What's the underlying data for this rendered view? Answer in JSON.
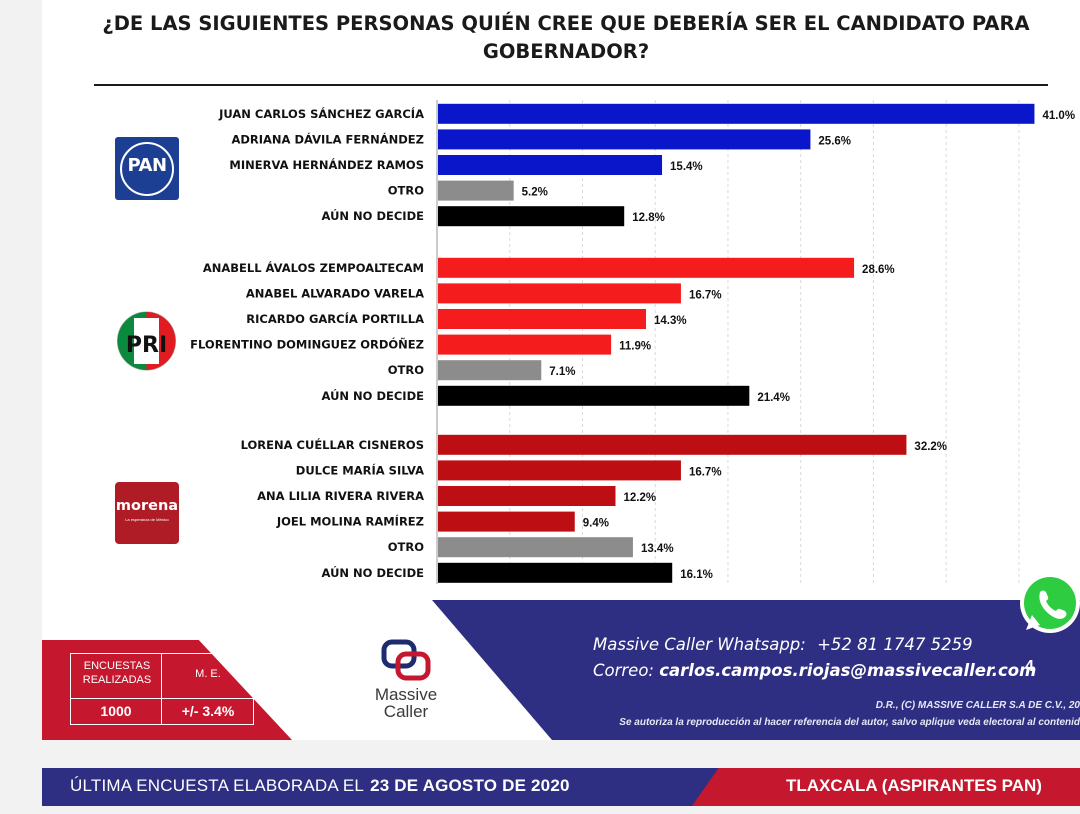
{
  "title": "¿DE LAS SIGUIENTES PERSONAS QUIÉN CREE QUE DEBERÍA SER EL CANDIDATO PARA GOBERNADOR?",
  "parties": {
    "pan": "PAN",
    "pri": "PRI",
    "morena": "morena",
    "morena_tagline": "La esperanza de México"
  },
  "colors": {
    "pan": "#0a16c9",
    "pri": "#f41c1c",
    "morena": "#bd0f13",
    "otro": "#8c8c8c",
    "no_decide": "#000000",
    "navy": "#2e2f82",
    "red": "#c5182e"
  },
  "chart_data": {
    "type": "bar",
    "orientation": "horizontal",
    "title": "¿DE LAS SIGUIENTES PERSONAS QUIÉN CREE QUE DEBERÍA SER EL CANDIDATO PARA GOBERNADOR?",
    "xlim": [
      0,
      42
    ],
    "grid": true,
    "value_suffix": "%",
    "groups": [
      {
        "party": "PAN",
        "categories": [
          "JUAN CARLOS SÁNCHEZ GARCÍA",
          "ADRIANA DÁVILA FERNÁNDEZ",
          "MINERVA HERNÁNDEZ RAMOS",
          "OTRO",
          "AÚN NO DECIDE"
        ],
        "values": [
          41.0,
          25.6,
          15.4,
          5.2,
          12.8
        ],
        "labels": [
          "41.0%",
          "25.6%",
          "15.4%",
          "5.2%",
          "12.8%"
        ]
      },
      {
        "party": "PRI",
        "categories": [
          "ANABELL ÁVALOS ZEMPOALTECAM",
          "ANABEL ALVARADO VARELA",
          "RICARDO GARCÍA PORTILLA",
          "FLORENTINO DOMINGUEZ ORDÓÑEZ",
          "OTRO",
          "AÚN NO DECIDE"
        ],
        "values": [
          28.6,
          16.7,
          14.3,
          11.9,
          7.1,
          21.4
        ],
        "labels": [
          "28.6%",
          "16.7%",
          "14.3%",
          "11.9%",
          "7.1%",
          "21.4%"
        ]
      },
      {
        "party": "morena",
        "categories": [
          "LORENA CUÉLLAR CISNEROS",
          "DULCE MARÍA SILVA",
          "ANA LILIA RIVERA RIVERA",
          "JOEL MOLINA RAMÍREZ",
          "OTRO",
          "AÚN NO DECIDE"
        ],
        "values": [
          32.2,
          16.7,
          12.2,
          9.4,
          13.4,
          16.1
        ],
        "labels": [
          "32.2%",
          "16.7%",
          "12.2%",
          "9.4%",
          "13.4%",
          "16.1%"
        ]
      }
    ]
  },
  "survey": {
    "col1_header": "ENCUESTAS REALIZADAS",
    "col2_header": "M. E.",
    "col1_value": "1000",
    "col2_value": "+/- 3.4%"
  },
  "brand": {
    "name_line1": "Massive",
    "name_line2": "Caller"
  },
  "contact": {
    "whatsapp_label": "Massive Caller Whatsapp:",
    "whatsapp_number": "+52 81 1747 5259",
    "email_label": "Correo:",
    "email": "carlos.campos.riojas@massivecaller.com",
    "page_number": "4",
    "rights_line1": "D.R., (C) MASSIVE CALLER S.A DE C.V., 20",
    "rights_line2": "Se autoriza la reproducción al hacer referencia del autor, salvo aplique veda electoral al contenid"
  },
  "footer": {
    "left_prefix": "ÚLTIMA ENCUESTA ELABORADA EL",
    "left_date": "23 DE AGOSTO DE 2020",
    "right_text": "TLAXCALA (ASPIRANTES PAN)"
  }
}
